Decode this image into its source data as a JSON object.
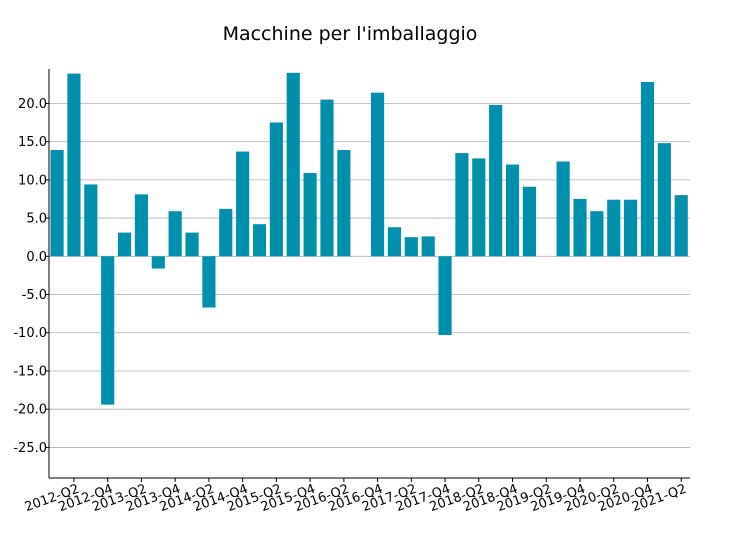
{
  "chart_data": {
    "type": "bar",
    "title": "Macchine per l'imballaggio",
    "xlabel": "",
    "ylabel": "",
    "bar_color": "#008fad",
    "grid": "horizontal",
    "ylim": [
      -29,
      24.5
    ],
    "y_ticks": [
      -25,
      -20,
      -15,
      -10,
      -5,
      0,
      5,
      10,
      15,
      20
    ],
    "y_tick_labels": [
      "-25.0",
      "-20.0",
      "-15.0",
      "-10.0",
      "-5.0",
      "0.0",
      "5.0",
      "10.0",
      "15.0",
      "20.0"
    ],
    "x_tick_labels": [
      "2012-Q2",
      "2012-Q4",
      "2013-Q2",
      "2013-Q4",
      "2014-Q2",
      "2014-Q4",
      "2015-Q2",
      "2015-Q4",
      "2016-Q2",
      "2016-Q4",
      "2017-Q2",
      "2017-Q4",
      "2018-Q2",
      "2018-Q4",
      "2019-Q2",
      "2019-Q4",
      "2020-Q2",
      "2020-Q4",
      "2021-Q2"
    ],
    "values": [
      13.9,
      23.9,
      9.4,
      -19.4,
      3.1,
      8.1,
      -1.6,
      5.9,
      3.1,
      -6.7,
      6.2,
      13.7,
      4.2,
      17.5,
      24.0,
      10.9,
      20.5,
      13.9,
      null,
      21.4,
      3.8,
      2.5,
      2.6,
      -10.3,
      13.5,
      12.8,
      19.8,
      12.0,
      9.1,
      null,
      12.4,
      7.5,
      5.9,
      7.4,
      7.4,
      22.8,
      14.8,
      8.0
    ]
  }
}
